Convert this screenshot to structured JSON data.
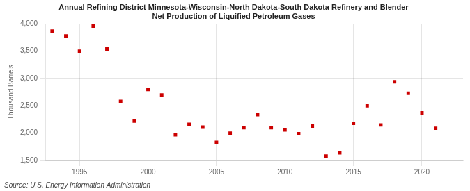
{
  "chart_data": {
    "type": "scatter",
    "title": [
      "Annual Refining District Minnesota-Wisconsin-North Dakota-South Dakota Refinery and Blender",
      "Net Production of Liquified Petroleum Gases"
    ],
    "ylabel": "Thousand Barrels",
    "annotation": "Source: U.S. Energy Information Administration",
    "x": [
      1993,
      1994,
      1995,
      1996,
      1997,
      1998,
      1999,
      2000,
      2001,
      2002,
      2003,
      2004,
      2005,
      2006,
      2007,
      2008,
      2009,
      2010,
      2011,
      2012,
      2013,
      2014,
      2015,
      2016,
      2017,
      2018,
      2019,
      2020,
      2021
    ],
    "values": [
      3870,
      3780,
      3500,
      3960,
      3540,
      2580,
      2220,
      2800,
      2700,
      1970,
      2160,
      2110,
      1830,
      2000,
      2100,
      2340,
      2100,
      2060,
      1990,
      2130,
      1580,
      1640,
      2180,
      2500,
      2150,
      2940,
      2730,
      2370,
      2090
    ],
    "color": "#cc0000",
    "marker": "square",
    "xlim": [
      1992.5,
      2023
    ],
    "xticks": [
      1995,
      2000,
      2005,
      2010,
      2015,
      2020
    ],
    "ylim": [
      1500,
      4000
    ],
    "yticks": [
      {
        "value": 1500,
        "label": "1,500"
      },
      {
        "value": 2000,
        "label": "2,000"
      },
      {
        "value": 2500,
        "label": "2,500"
      },
      {
        "value": 3000,
        "label": "3,000"
      },
      {
        "value": 3500,
        "label": "3,500"
      },
      {
        "value": 4000,
        "label": "4,000"
      }
    ],
    "grid": true
  }
}
